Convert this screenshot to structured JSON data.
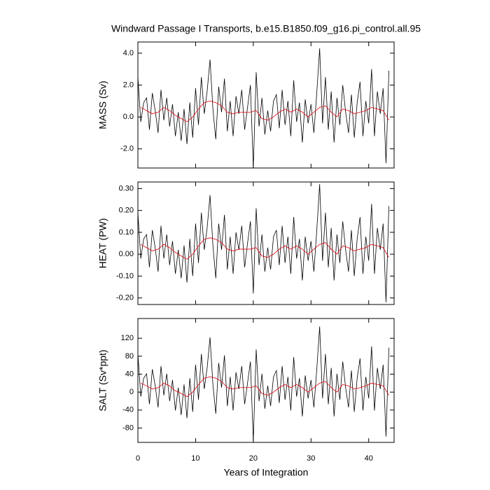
{
  "chart_data": [
    {
      "type": "line",
      "title": "Windward Passage I Transports, b.e15.B1850.f09_g16.pi_control.all.95",
      "ylabel": "MASS (Sv)",
      "xlim": [
        0,
        44.4
      ],
      "xticks": [
        0,
        10,
        20,
        30,
        40
      ],
      "ylim": [
        -3.2,
        4.7
      ],
      "yticks": [
        {
          "value": -2,
          "label": "-2.0"
        },
        {
          "value": 0,
          "label": "0.0"
        },
        {
          "value": 2,
          "label": "2.0"
        },
        {
          "value": 4,
          "label": "4.0"
        }
      ],
      "series": [
        {
          "color": "#000000",
          "x": [
            0,
            0.5,
            1,
            1.5,
            2,
            2.5,
            3,
            3.5,
            4,
            4.5,
            5,
            5.5,
            6,
            6.5,
            7,
            7.5,
            8,
            8.5,
            9,
            9.5,
            10,
            10.5,
            11,
            11.5,
            12,
            12.5,
            13,
            13.5,
            14,
            14.5,
            15,
            15.5,
            16,
            16.5,
            17,
            17.5,
            18,
            18.5,
            19,
            19.5,
            20,
            20.5,
            21,
            21.5,
            22,
            22.5,
            23,
            23.5,
            24,
            24.5,
            25,
            25.5,
            26,
            26.5,
            27,
            27.5,
            28,
            28.5,
            29,
            29.5,
            30,
            30.5,
            31,
            31.5,
            32,
            32.5,
            33,
            33.5,
            34,
            34.5,
            35,
            35.5,
            36,
            36.5,
            37,
            37.5,
            38,
            38.5,
            39,
            39.5,
            40,
            40.5,
            41,
            41.5,
            42,
            42.5,
            43,
            43.5
          ],
          "values": [
            2.5,
            -0.3,
            0.9,
            1.2,
            -0.8,
            1.5,
            0.4,
            -1.0,
            1.7,
            -0.2,
            1.2,
            -0.6,
            0.8,
            -1.2,
            0.3,
            -1.5,
            0.5,
            -1.7,
            0.9,
            -1.3,
            1.8,
            -0.5,
            2.5,
            0.2,
            1.6,
            3.6,
            0.5,
            -1.4,
            1.9,
            0.3,
            2.4,
            -0.9,
            1.0,
            -1.2,
            1.3,
            0.2,
            1.7,
            -0.8,
            0.6,
            2.0,
            -3.2,
            2.8,
            -0.6,
            1.2,
            -1.1,
            0.4,
            -0.9,
            1.0,
            1.4,
            -0.7,
            1.7,
            -0.5,
            1.0,
            -1.2,
            2.3,
            -0.3,
            0.9,
            -1.6,
            1.1,
            -0.4,
            0.8,
            -1.0,
            1.5,
            4.3,
            -0.4,
            2.5,
            -0.8,
            1.6,
            -1.6,
            1.2,
            -0.5,
            2.0,
            0.3,
            -1.0,
            1.4,
            -1.3,
            0.9,
            2.2,
            -1.2,
            1.0,
            -0.4,
            3.0,
            -1.2,
            1.6,
            0.2,
            1.8,
            -2.9,
            2.9
          ]
        },
        {
          "color": "#e0000a",
          "x": [
            0.5,
            1.5,
            2.5,
            3.5,
            4.5,
            5.5,
            6.5,
            7.5,
            8.5,
            9.5,
            10.5,
            11.5,
            12.5,
            13.5,
            14.5,
            15.5,
            16.5,
            17.5,
            18.5,
            19.5,
            20.5,
            21.5,
            22.5,
            23.5,
            24.5,
            25.5,
            26.5,
            27.5,
            28.5,
            29.5,
            30.5,
            31.5,
            32.5,
            33.5,
            34.5,
            35.5,
            36.5,
            37.5,
            38.5,
            39.5,
            40.5,
            41.5,
            42.5,
            43.5
          ],
          "values": [
            0.6,
            0.4,
            0.2,
            0.3,
            0.6,
            0.4,
            0.1,
            -0.1,
            -0.3,
            0.0,
            0.5,
            0.9,
            1.0,
            0.9,
            0.7,
            0.3,
            0.2,
            0.3,
            0.3,
            0.3,
            0.4,
            -0.1,
            -0.2,
            0.0,
            0.3,
            0.5,
            0.3,
            0.5,
            0.3,
            0.0,
            0.3,
            0.6,
            0.7,
            0.3,
            0.0,
            0.5,
            0.4,
            0.2,
            0.3,
            0.4,
            0.6,
            0.5,
            0.4,
            -0.2
          ]
        }
      ]
    },
    {
      "type": "line",
      "ylabel": "HEAT (PW)",
      "xlim": [
        0,
        44.4
      ],
      "xticks": [
        0,
        10,
        20,
        30,
        40
      ],
      "ylim": [
        -0.23,
        0.33
      ],
      "yticks": [
        {
          "value": -0.2,
          "label": "-0.20"
        },
        {
          "value": -0.1,
          "label": "-0.10"
        },
        {
          "value": 0,
          "label": "0.00"
        },
        {
          "value": 0.1,
          "label": "0.10"
        },
        {
          "value": 0.2,
          "label": "0.20"
        },
        {
          "value": 0.3,
          "label": "0.30"
        }
      ],
      "series": [
        {
          "color": "#000000",
          "x": [
            0,
            0.5,
            1,
            1.5,
            2,
            2.5,
            3,
            3.5,
            4,
            4.5,
            5,
            5.5,
            6,
            6.5,
            7,
            7.5,
            8,
            8.5,
            9,
            9.5,
            10,
            10.5,
            11,
            11.5,
            12,
            12.5,
            13,
            13.5,
            14,
            14.5,
            15,
            15.5,
            16,
            16.5,
            17,
            17.5,
            18,
            18.5,
            19,
            19.5,
            20,
            20.5,
            21,
            21.5,
            22,
            22.5,
            23,
            23.5,
            24,
            24.5,
            25,
            25.5,
            26,
            26.5,
            27,
            27.5,
            28,
            28.5,
            29,
            29.5,
            30,
            30.5,
            31,
            31.5,
            32,
            32.5,
            33,
            33.5,
            34,
            34.5,
            35,
            35.5,
            36,
            36.5,
            37,
            37.5,
            38,
            38.5,
            39,
            39.5,
            40,
            40.5,
            41,
            41.5,
            42,
            42.5,
            43,
            43.5
          ],
          "values": [
            0.19,
            -0.02,
            0.07,
            0.09,
            -0.06,
            0.11,
            0.03,
            -0.08,
            0.13,
            -0.02,
            0.09,
            -0.05,
            0.06,
            -0.09,
            0.02,
            -0.11,
            0.04,
            -0.13,
            0.07,
            -0.1,
            0.14,
            -0.04,
            0.19,
            0.02,
            0.12,
            0.27,
            0.04,
            -0.11,
            0.14,
            0.02,
            0.18,
            -0.07,
            0.08,
            -0.09,
            0.1,
            0.02,
            0.13,
            -0.06,
            0.05,
            0.15,
            -0.18,
            0.21,
            -0.05,
            0.09,
            -0.08,
            0.03,
            -0.07,
            0.08,
            0.11,
            -0.05,
            0.13,
            -0.04,
            0.08,
            -0.09,
            0.17,
            -0.02,
            0.07,
            -0.12,
            0.08,
            -0.03,
            0.06,
            -0.08,
            0.11,
            0.32,
            -0.03,
            0.19,
            -0.06,
            0.12,
            -0.12,
            0.09,
            -0.04,
            0.15,
            0.02,
            -0.08,
            0.11,
            -0.1,
            0.07,
            0.17,
            -0.09,
            0.08,
            -0.03,
            0.23,
            -0.09,
            0.12,
            0.02,
            0.14,
            -0.22,
            0.22
          ]
        },
        {
          "color": "#e0000a",
          "x": [
            0.5,
            1.5,
            2.5,
            3.5,
            4.5,
            5.5,
            6.5,
            7.5,
            8.5,
            9.5,
            10.5,
            11.5,
            12.5,
            13.5,
            14.5,
            15.5,
            16.5,
            17.5,
            18.5,
            19.5,
            20.5,
            21.5,
            22.5,
            23.5,
            24.5,
            25.5,
            26.5,
            27.5,
            28.5,
            29.5,
            30.5,
            31.5,
            32.5,
            33.5,
            34.5,
            35.5,
            36.5,
            37.5,
            38.5,
            39.5,
            40.5,
            41.5,
            42.5,
            43.5
          ],
          "values": [
            0.045,
            0.03,
            0.015,
            0.023,
            0.045,
            0.03,
            0.008,
            -0.008,
            -0.023,
            0,
            0.038,
            0.068,
            0.075,
            0.068,
            0.053,
            0.023,
            0.015,
            0.023,
            0.023,
            0.023,
            0.03,
            -0.008,
            -0.015,
            0,
            0.023,
            0.038,
            0.023,
            0.038,
            0.023,
            0,
            0.023,
            0.045,
            0.053,
            0.023,
            0,
            0.038,
            0.03,
            0.015,
            0.023,
            0.03,
            0.045,
            0.038,
            0.03,
            -0.015
          ]
        }
      ]
    },
    {
      "type": "line",
      "ylabel": "SALT (Sv*ppt)",
      "xlabel": "Years of Integration",
      "xlim": [
        0,
        44.4
      ],
      "xticks": [
        0,
        10,
        20,
        30,
        40
      ],
      "ylim": [
        -112,
        164
      ],
      "yticks": [
        -80,
        -40,
        0,
        40,
        80,
        120
      ],
      "series": [
        {
          "color": "#000000",
          "x": [
            0,
            0.5,
            1,
            1.5,
            2,
            2.5,
            3,
            3.5,
            4,
            4.5,
            5,
            5.5,
            6,
            6.5,
            7,
            7.5,
            8,
            8.5,
            9,
            9.5,
            10,
            10.5,
            11,
            11.5,
            12,
            12.5,
            13,
            13.5,
            14,
            14.5,
            15,
            15.5,
            16,
            16.5,
            17,
            17.5,
            18,
            18.5,
            19,
            19.5,
            20,
            20.5,
            21,
            21.5,
            22,
            22.5,
            23,
            23.5,
            24,
            24.5,
            25,
            25.5,
            26,
            26.5,
            27,
            27.5,
            28,
            28.5,
            29,
            29.5,
            30,
            30.5,
            31,
            31.5,
            32,
            32.5,
            33,
            33.5,
            34,
            34.5,
            35,
            35.5,
            36,
            36.5,
            37,
            37.5,
            38,
            38.5,
            39,
            39.5,
            40,
            40.5,
            41,
            41.5,
            42,
            42.5,
            43,
            43.5
          ],
          "values": [
            85,
            -10,
            31,
            41,
            -27,
            51,
            14,
            -34,
            58,
            -7,
            41,
            -20,
            27,
            -41,
            10,
            -51,
            17,
            -58,
            31,
            -44,
            61,
            -17,
            85,
            7,
            54,
            122,
            17,
            -48,
            65,
            10,
            82,
            -31,
            34,
            -41,
            44,
            7,
            58,
            -27,
            20,
            68,
            -109,
            95,
            -20,
            41,
            -37,
            14,
            -31,
            34,
            48,
            -24,
            58,
            -17,
            34,
            -41,
            78,
            -10,
            31,
            -54,
            37,
            -14,
            27,
            -34,
            51,
            146,
            -14,
            85,
            -27,
            54,
            -54,
            41,
            -17,
            68,
            10,
            -34,
            48,
            -44,
            31,
            75,
            -41,
            34,
            -14,
            102,
            -41,
            54,
            7,
            61,
            -99,
            99
          ]
        },
        {
          "color": "#e0000a",
          "x": [
            0.5,
            1.5,
            2.5,
            3.5,
            4.5,
            5.5,
            6.5,
            7.5,
            8.5,
            9.5,
            10.5,
            11.5,
            12.5,
            13.5,
            14.5,
            15.5,
            16.5,
            17.5,
            18.5,
            19.5,
            20.5,
            21.5,
            22.5,
            23.5,
            24.5,
            25.5,
            26.5,
            27.5,
            28.5,
            29.5,
            30.5,
            31.5,
            32.5,
            33.5,
            34.5,
            35.5,
            36.5,
            37.5,
            38.5,
            39.5,
            40.5,
            41.5,
            42.5,
            43.5
          ],
          "values": [
            20,
            14,
            7,
            10,
            20,
            14,
            3,
            -3,
            -10,
            0,
            17,
            31,
            34,
            31,
            24,
            10,
            7,
            10,
            10,
            10,
            14,
            -3,
            -7,
            0,
            10,
            17,
            10,
            17,
            10,
            0,
            10,
            20,
            24,
            10,
            0,
            17,
            14,
            7,
            10,
            14,
            20,
            17,
            14,
            -7
          ]
        }
      ]
    }
  ]
}
